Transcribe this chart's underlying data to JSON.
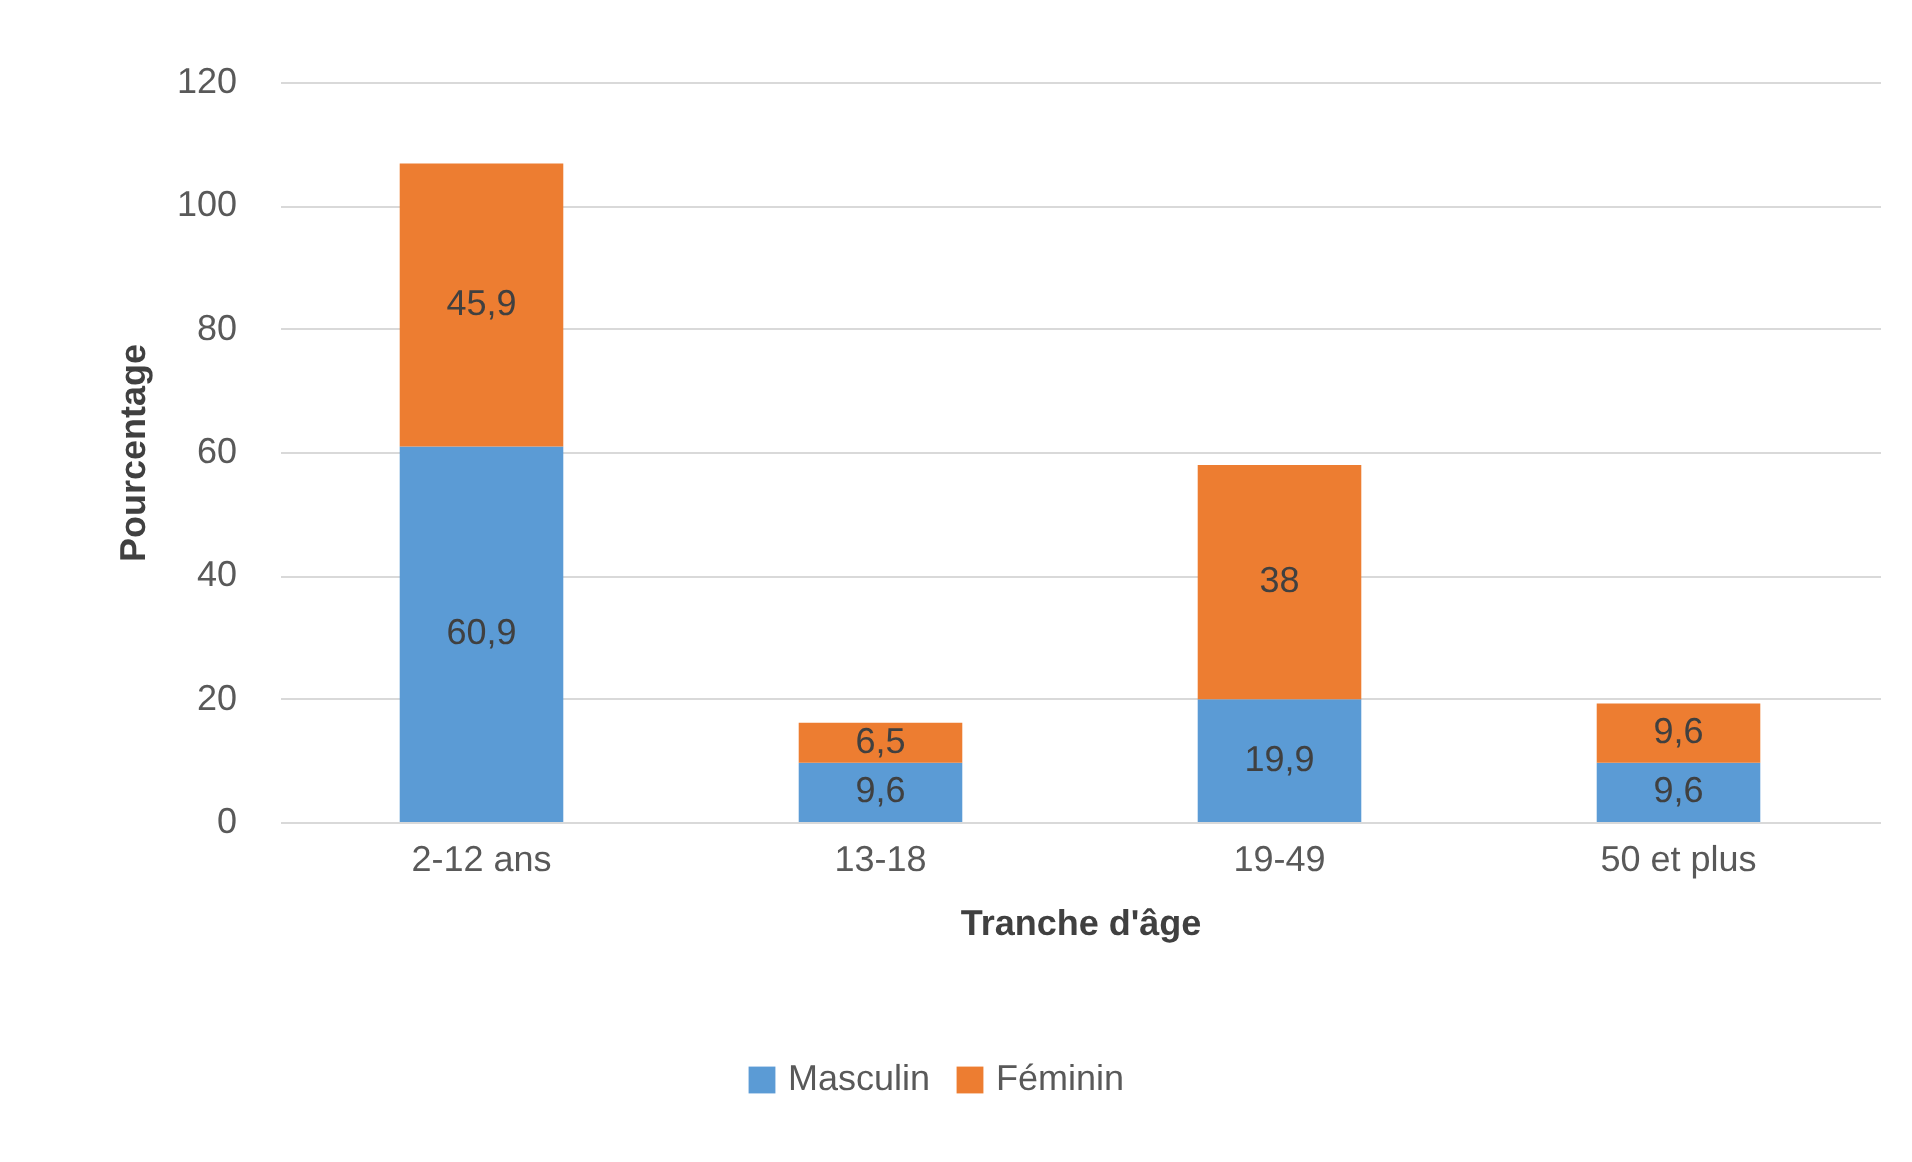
{
  "chart_data": {
    "type": "bar",
    "stacked": true,
    "xlabel": "Tranche d'âge",
    "ylabel": "Pourcentage",
    "categories": [
      "2-12 ans",
      "13-18",
      "19-49",
      "50 et plus"
    ],
    "series": [
      {
        "name": "Masculin",
        "color": "#5b9bd5",
        "values": [
          60.9,
          9.6,
          19.9,
          9.6
        ],
        "value_labels": [
          "60,9",
          "9,6",
          "19,9",
          "9,6"
        ]
      },
      {
        "name": "Féminin",
        "color": "#ed7d31",
        "values": [
          45.9,
          6.5,
          38,
          9.6
        ],
        "value_labels": [
          "45,9",
          "6,5",
          "38",
          "9,6"
        ]
      }
    ],
    "ylim": [
      0,
      120
    ],
    "yticks": [
      0,
      20,
      40,
      60,
      80,
      100,
      120
    ],
    "grid": "y",
    "legend": "bottom"
  }
}
